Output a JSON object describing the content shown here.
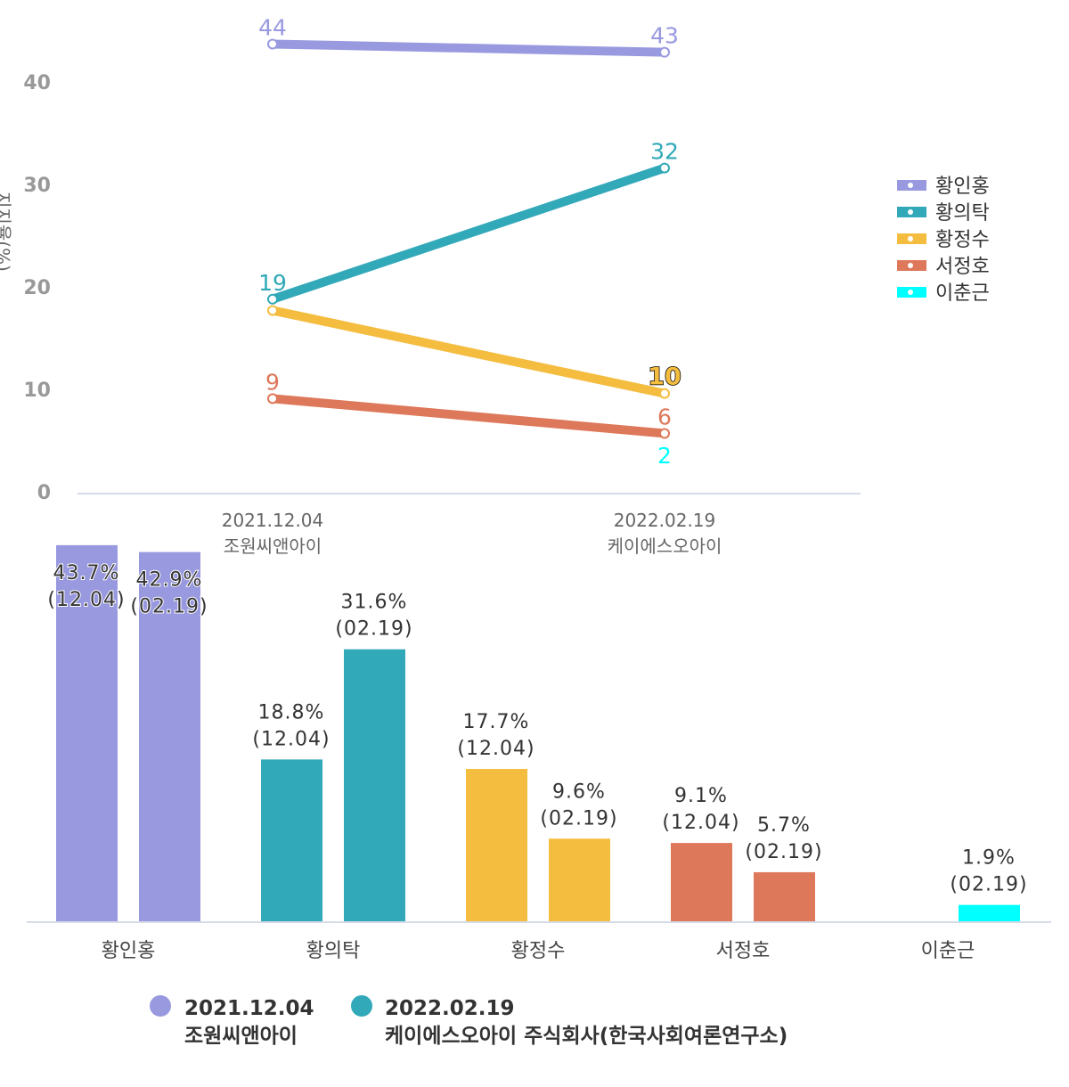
{
  "chart_data": [
    {
      "type": "line",
      "ylabel": "지지율(%)",
      "ylim": [
        0,
        40
      ],
      "yticks": [
        0,
        10,
        20,
        30,
        40
      ],
      "categories": [
        [
          "2021.12.04",
          "조원씨앤아이"
        ],
        [
          "2022.02.19",
          "케이에스오아이"
        ]
      ],
      "series": [
        {
          "name": "황인홍",
          "color": "#9999e0",
          "values": [
            43.7,
            42.9
          ],
          "labels": [
            "44",
            "43"
          ]
        },
        {
          "name": "황의탁",
          "color": "#31a9b8",
          "values": [
            18.8,
            31.6
          ],
          "labels": [
            "19",
            "32"
          ]
        },
        {
          "name": "황정수",
          "color": "#f5bd40",
          "values": [
            17.7,
            9.6
          ],
          "labels": [
            "",
            ""
          ],
          "labels_bold": [
            "",
            "10"
          ]
        },
        {
          "name": "서정호",
          "color": "#de785a",
          "values": [
            9.1,
            5.7
          ],
          "labels": [
            "9",
            "6"
          ]
        },
        {
          "name": "이춘근",
          "color": "#00ffff",
          "values": [
            null,
            1.9
          ],
          "labels": [
            "",
            "2"
          ]
        }
      ],
      "legend": "right"
    },
    {
      "type": "bar",
      "categories": [
        "황인홍",
        "황의탁",
        "황정수",
        "서정호",
        "이춘근"
      ],
      "series": [
        {
          "name": "2021.12.04",
          "name2": "조원씨앤아이",
          "values": [
            43.7,
            18.8,
            17.7,
            9.1,
            null
          ],
          "labels": [
            "43.7%",
            "18.8%",
            "17.7%",
            "9.1%",
            ""
          ],
          "sub": "(12.04)"
        },
        {
          "name": "2022.02.19",
          "name2": "케이에스오아이 주식회사(한국사회여론연구소)",
          "values": [
            42.9,
            31.6,
            9.6,
            5.7,
            1.9
          ],
          "labels": [
            "42.9%",
            "31.6%",
            "9.6%",
            "5.7%",
            "1.9%"
          ],
          "sub": "(02.19)"
        }
      ],
      "colors": [
        "#9999e0",
        "#31a9b8",
        "#f5bd40",
        "#de785a",
        "#00ffff"
      ],
      "legend_colors": [
        "#9999e0",
        "#31a9b8"
      ],
      "legend": "bottom"
    }
  ]
}
